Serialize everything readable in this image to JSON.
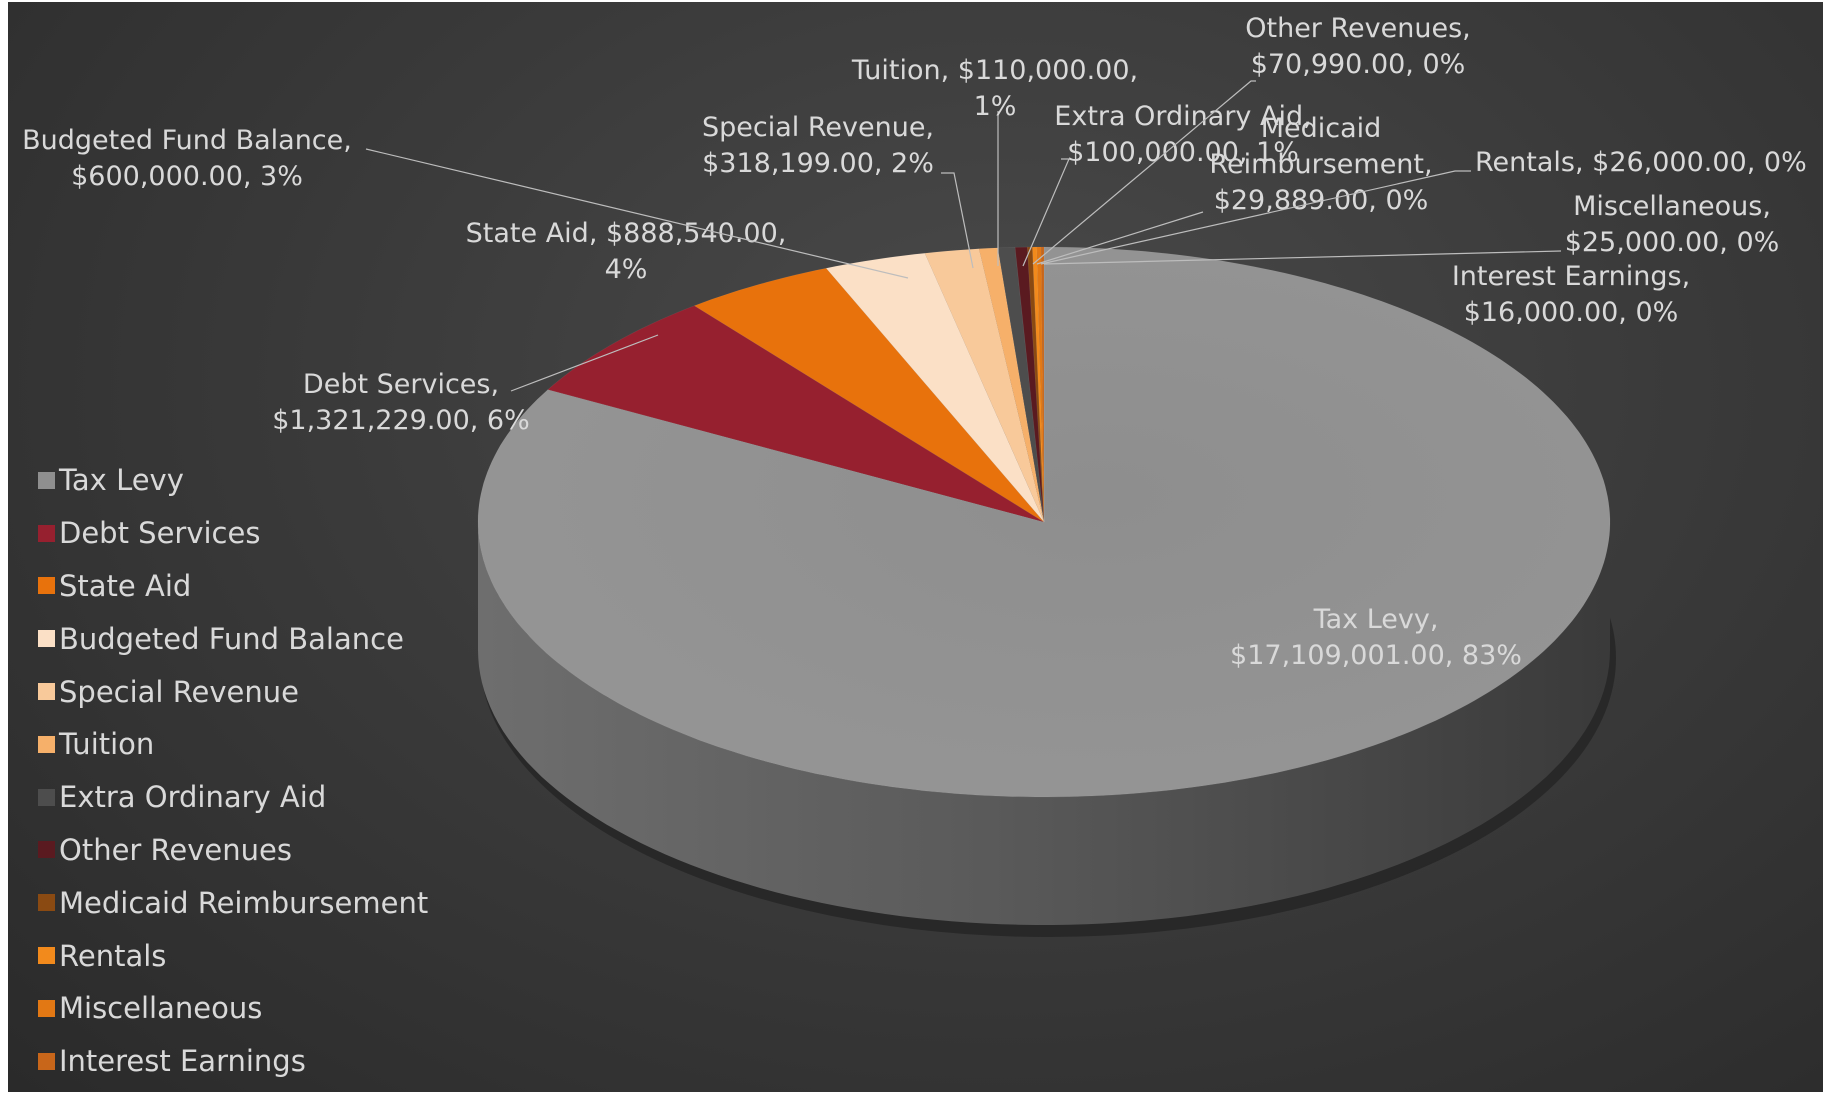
{
  "chart_data": {
    "type": "pie",
    "title": "",
    "legend_position": "left",
    "label_color": "#d9d9d9",
    "slices": [
      {
        "name": "Tax Levy",
        "value": 17109001.0,
        "percent": 83,
        "color": "#8f8f8f",
        "label_lines": [
          "Tax Levy,",
          "$17,109,001.00, 83%"
        ]
      },
      {
        "name": "Debt Services",
        "value": 1321229.0,
        "percent": 6,
        "color": "#96202f",
        "label_lines": [
          "Debt Services,",
          "$1,321,229.00, 6%"
        ]
      },
      {
        "name": "State Aid",
        "value": 888540.0,
        "percent": 4,
        "color": "#e8720c",
        "label_lines": [
          "State Aid, $888,540.00,",
          "4%"
        ]
      },
      {
        "name": "Budgeted Fund Balance",
        "value": 600000.0,
        "percent": 3,
        "color": "#fbe0c6",
        "label_lines": [
          "Budgeted Fund Balance,",
          "$600,000.00, 3%"
        ]
      },
      {
        "name": "Special Revenue",
        "value": 318199.0,
        "percent": 2,
        "color": "#f8c99a",
        "label_lines": [
          "Special Revenue,",
          "$318,199.00, 2%"
        ]
      },
      {
        "name": "Tuition",
        "value": 110000.0,
        "percent": 1,
        "color": "#f6b06a",
        "label_lines": [
          "Tuition, $110,000.00,",
          "1%"
        ]
      },
      {
        "name": "Extra Ordinary Aid",
        "value": 100000.0,
        "percent": 1,
        "color": "#4d4d4d",
        "label_lines": [
          "Extra Ordinary Aid,",
          "$100,000.00, 1%"
        ]
      },
      {
        "name": "Other Revenues",
        "value": 70990.0,
        "percent": 0,
        "color": "#5a1a20",
        "label_lines": [
          "Other Revenues,",
          "$70,990.00, 0%"
        ]
      },
      {
        "name": "Medicaid Reimbursement",
        "value": 29889.0,
        "percent": 0,
        "color": "#8a4a12",
        "label_lines": [
          "Medicaid",
          "Reimbursement,",
          "$29,889.00, 0%"
        ]
      },
      {
        "name": "Rentals",
        "value": 26000.0,
        "percent": 0,
        "color": "#f28a1c",
        "label_lines": [
          "Rentals, $26,000.00, 0%"
        ]
      },
      {
        "name": "Miscellaneous",
        "value": 25000.0,
        "percent": 0,
        "color": "#e27814",
        "label_lines": [
          "Miscellaneous,",
          "$25,000.00, 0%"
        ]
      },
      {
        "name": "Interest Earnings",
        "value": 16000.0,
        "percent": 0,
        "color": "#c8661a",
        "label_lines": [
          "Interest Earnings,",
          "$16,000.00, 0%"
        ]
      }
    ]
  }
}
